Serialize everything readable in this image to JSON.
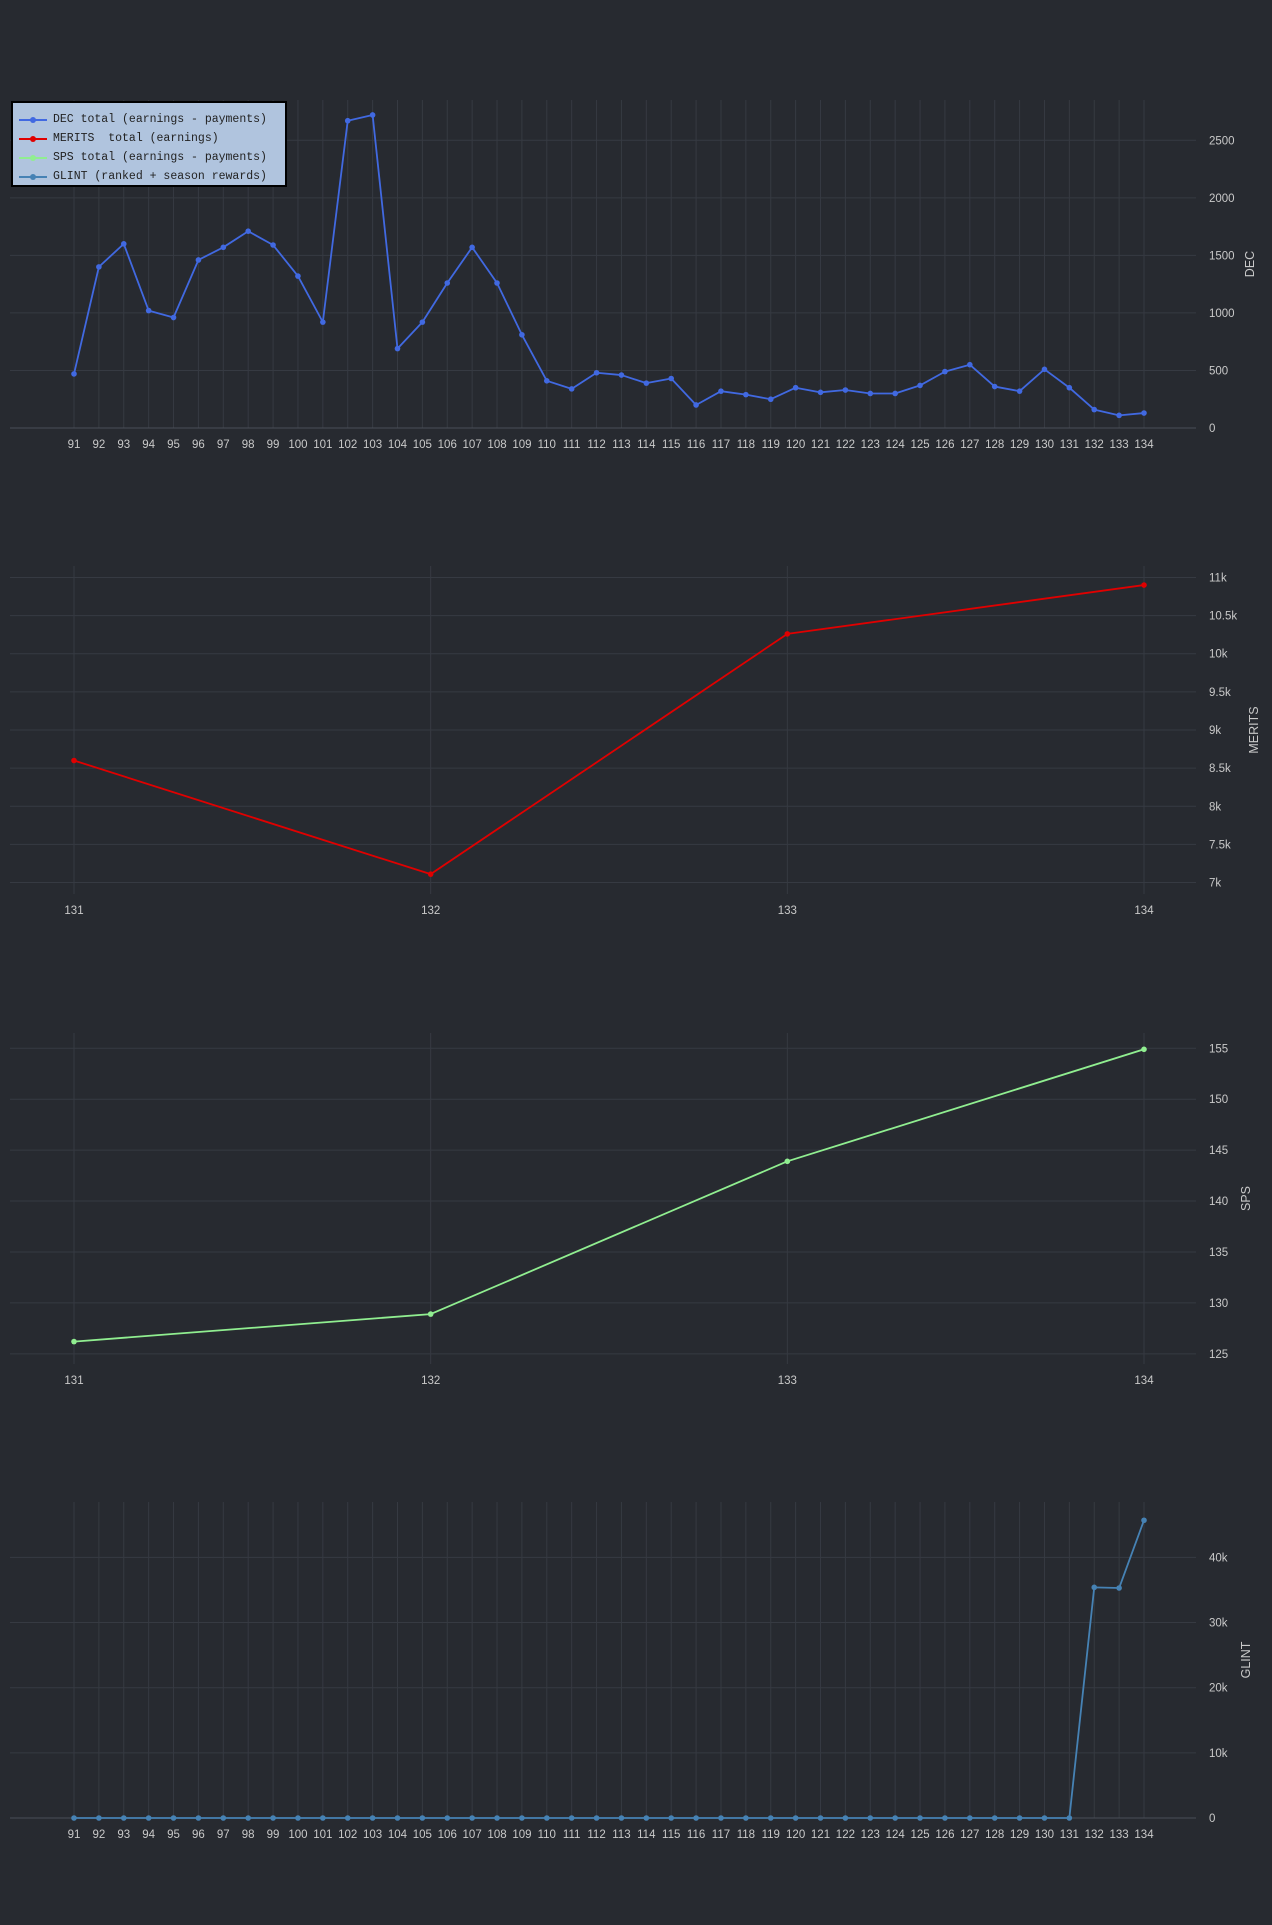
{
  "legend": {
    "items": [
      {
        "label": "DEC total (earnings - payments)",
        "color": "#4169e1"
      },
      {
        "label": "MERITS  total (earnings)",
        "color": "#e00000"
      },
      {
        "label": "SPS total (earnings - payments)",
        "color": "#90ee90"
      },
      {
        "label": "GLINT (ranked + season rewards)",
        "color": "#4682b4"
      }
    ]
  },
  "chart_data": [
    {
      "type": "line",
      "ylabel": "DEC",
      "color": "#4169e1",
      "x": [
        91,
        92,
        93,
        94,
        95,
        96,
        97,
        98,
        99,
        100,
        101,
        102,
        103,
        104,
        105,
        106,
        107,
        108,
        109,
        110,
        111,
        112,
        113,
        114,
        115,
        116,
        117,
        118,
        119,
        120,
        121,
        122,
        123,
        124,
        125,
        126,
        127,
        128,
        129,
        130,
        131,
        132,
        133,
        134
      ],
      "values": [
        470,
        1400,
        1600,
        1020,
        960,
        1460,
        1570,
        1710,
        1590,
        1320,
        920,
        2670,
        2720,
        690,
        920,
        1260,
        1570,
        1260,
        810,
        410,
        340,
        480,
        460,
        390,
        430,
        200,
        320,
        290,
        250,
        350,
        310,
        330,
        300,
        300,
        370,
        490,
        550,
        360,
        320,
        510,
        350,
        160,
        110,
        130
      ],
      "ylim": [
        0,
        2850
      ],
      "yticks": [
        0,
        500,
        1000,
        1500,
        2000,
        2500
      ],
      "ytick_labels": [
        "0",
        "500",
        "1000",
        "1500",
        "2000",
        "2500"
      ],
      "grid": true
    },
    {
      "type": "line",
      "ylabel": "MERITS",
      "color": "#e00000",
      "x": [
        131,
        132,
        133,
        134
      ],
      "values": [
        8600,
        7110,
        10260,
        10900
      ],
      "ylim": [
        6850,
        11150
      ],
      "yticks": [
        7000,
        7500,
        8000,
        8500,
        9000,
        9500,
        10000,
        10500,
        11000
      ],
      "ytick_labels": [
        "7k",
        "7.5k",
        "8k",
        "8.5k",
        "9k",
        "9.5k",
        "10k",
        "10.5k",
        "11k"
      ],
      "grid": true
    },
    {
      "type": "line",
      "ylabel": "SPS",
      "color": "#90ee90",
      "x": [
        131,
        132,
        133,
        134
      ],
      "values": [
        126.2,
        128.9,
        143.9,
        154.9
      ],
      "ylim": [
        124,
        156.5
      ],
      "yticks": [
        125,
        130,
        135,
        140,
        145,
        150,
        155
      ],
      "ytick_labels": [
        "125",
        "130",
        "135",
        "140",
        "145",
        "150",
        "155"
      ],
      "grid": true
    },
    {
      "type": "line",
      "ylabel": "GLINT",
      "color": "#4682b4",
      "x": [
        91,
        92,
        93,
        94,
        95,
        96,
        97,
        98,
        99,
        100,
        101,
        102,
        103,
        104,
        105,
        106,
        107,
        108,
        109,
        110,
        111,
        112,
        113,
        114,
        115,
        116,
        117,
        118,
        119,
        120,
        121,
        122,
        123,
        124,
        125,
        126,
        127,
        128,
        129,
        130,
        131,
        132,
        133,
        134
      ],
      "values": [
        0,
        0,
        0,
        0,
        0,
        0,
        0,
        0,
        0,
        0,
        0,
        0,
        0,
        0,
        0,
        0,
        0,
        0,
        0,
        0,
        0,
        0,
        0,
        0,
        0,
        0,
        0,
        0,
        0,
        0,
        0,
        0,
        0,
        0,
        0,
        0,
        0,
        0,
        0,
        0,
        0,
        35400,
        35300,
        45700
      ],
      "ylim": [
        0,
        48500
      ],
      "yticks": [
        0,
        10000,
        20000,
        30000,
        40000
      ],
      "ytick_labels": [
        "0",
        "10k",
        "20k",
        "30k",
        "40k"
      ],
      "grid": true
    }
  ]
}
